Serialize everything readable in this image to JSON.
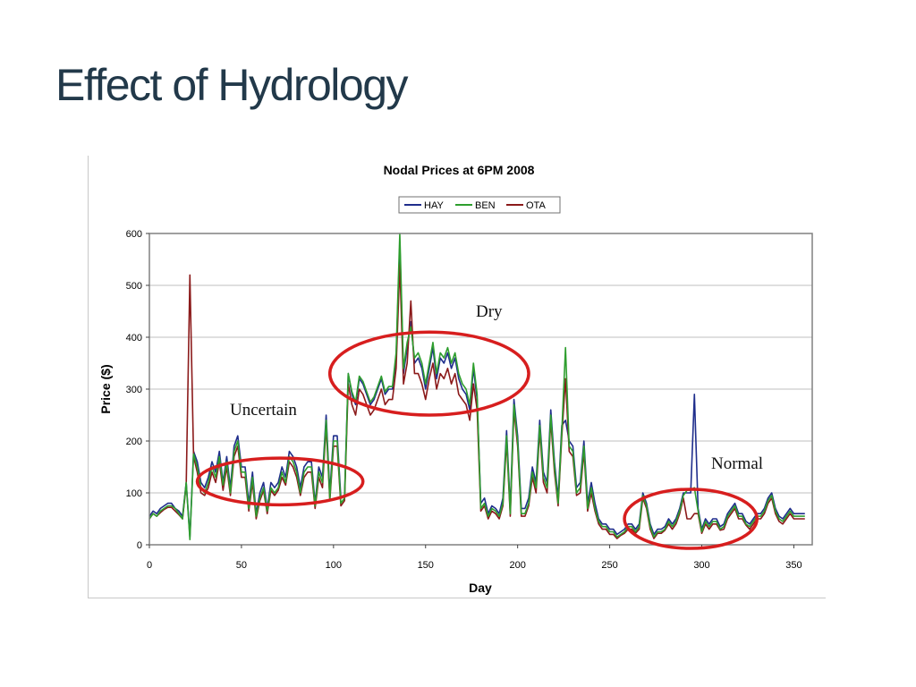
{
  "slide": {
    "title": "Effect of Hydrology"
  },
  "colors": {
    "title": "#22394a",
    "HAY": "#1f2e8c",
    "BEN": "#2e9e2e",
    "OTA": "#8b1a1a",
    "annotation": "#d71e1e",
    "grid": "#bfbfbf",
    "plot_border": "#808080"
  },
  "chart_data": {
    "type": "line",
    "title": "Nodal Prices at 6PM 2008",
    "xlabel": "Day",
    "ylabel": "Price ($)",
    "xlim": [
      0,
      360
    ],
    "ylim": [
      0,
      600
    ],
    "xticks": [
      0,
      50,
      100,
      150,
      200,
      250,
      300,
      350
    ],
    "yticks": [
      0,
      100,
      200,
      300,
      400,
      500,
      600
    ],
    "grid": "horizontal",
    "legend_position": "top-center",
    "x_step": 2,
    "series": [
      {
        "name": "HAY",
        "values": [
          55,
          65,
          60,
          70,
          75,
          80,
          80,
          70,
          65,
          55,
          120,
          15,
          180,
          160,
          120,
          110,
          130,
          160,
          140,
          180,
          120,
          170,
          110,
          190,
          210,
          150,
          150,
          80,
          140,
          60,
          100,
          120,
          70,
          120,
          110,
          120,
          150,
          130,
          180,
          170,
          150,
          110,
          150,
          160,
          160,
          80,
          150,
          130,
          250,
          100,
          210,
          210,
          90,
          95,
          330,
          290,
          270,
          320,
          310,
          290,
          270,
          280,
          300,
          320,
          290,
          300,
          300,
          360,
          580,
          330,
          380,
          430,
          350,
          360,
          340,
          300,
          340,
          380,
          320,
          360,
          350,
          370,
          340,
          360,
          320,
          300,
          290,
          260,
          340,
          280,
          80,
          90,
          60,
          75,
          70,
          60,
          90,
          220,
          70,
          280,
          210,
          70,
          70,
          90,
          150,
          120,
          240,
          140,
          120,
          260,
          160,
          90,
          230,
          240,
          200,
          190,
          110,
          120,
          200,
          80,
          120,
          80,
          50,
          40,
          40,
          30,
          30,
          20,
          25,
          30,
          40,
          40,
          30,
          40,
          100,
          80,
          40,
          20,
          30,
          30,
          35,
          50,
          40,
          50,
          70,
          100,
          100,
          100,
          290,
          70,
          30,
          50,
          40,
          50,
          50,
          35,
          40,
          60,
          70,
          80,
          60,
          60,
          45,
          40,
          50,
          60,
          60,
          70,
          90,
          100,
          70,
          55,
          50,
          60,
          70,
          60,
          60,
          60,
          60
        ],
        "note": "approximate reading of day-by-day values"
      },
      {
        "name": "BEN",
        "values": [
          50,
          60,
          55,
          65,
          70,
          75,
          75,
          70,
          60,
          50,
          120,
          10,
          175,
          150,
          110,
          100,
          120,
          150,
          130,
          170,
          115,
          160,
          100,
          180,
          200,
          140,
          140,
          70,
          130,
          55,
          90,
          110,
          65,
          110,
          100,
          110,
          140,
          120,
          170,
          160,
          140,
          100,
          140,
          150,
          150,
          75,
          140,
          120,
          240,
          90,
          200,
          200,
          80,
          90,
          330,
          295,
          275,
          325,
          315,
          295,
          275,
          285,
          305,
          325,
          295,
          305,
          305,
          370,
          600,
          340,
          390,
          420,
          360,
          370,
          350,
          310,
          350,
          390,
          330,
          370,
          360,
          380,
          350,
          370,
          330,
          310,
          300,
          270,
          350,
          290,
          70,
          80,
          55,
          70,
          65,
          55,
          80,
          210,
          60,
          270,
          200,
          60,
          60,
          80,
          140,
          110,
          230,
          130,
          110,
          250,
          150,
          80,
          220,
          380,
          190,
          180,
          100,
          110,
          190,
          70,
          110,
          70,
          45,
          35,
          35,
          25,
          25,
          15,
          20,
          25,
          35,
          35,
          25,
          35,
          95,
          75,
          35,
          15,
          25,
          25,
          30,
          45,
          35,
          45,
          65,
          95,
          105,
          105,
          110,
          65,
          25,
          45,
          35,
          45,
          45,
          30,
          35,
          55,
          65,
          75,
          55,
          55,
          40,
          35,
          45,
          55,
          55,
          65,
          85,
          95,
          65,
          50,
          45,
          55,
          65,
          55,
          55,
          55,
          55
        ]
      },
      {
        "name": "OTA",
        "values": [
          50,
          60,
          55,
          62,
          68,
          72,
          72,
          65,
          58,
          50,
          115,
          520,
          170,
          140,
          100,
          95,
          110,
          140,
          120,
          160,
          105,
          150,
          95,
          170,
          190,
          130,
          130,
          65,
          120,
          50,
          85,
          105,
          60,
          105,
          95,
          105,
          130,
          115,
          160,
          150,
          130,
          95,
          130,
          140,
          140,
          70,
          130,
          110,
          230,
          85,
          190,
          190,
          75,
          85,
          310,
          270,
          250,
          300,
          290,
          270,
          250,
          260,
          280,
          300,
          270,
          280,
          280,
          340,
          540,
          310,
          350,
          470,
          330,
          330,
          310,
          280,
          320,
          350,
          300,
          330,
          320,
          340,
          310,
          330,
          290,
          280,
          270,
          240,
          310,
          260,
          65,
          75,
          50,
          65,
          60,
          50,
          75,
          200,
          55,
          260,
          190,
          55,
          55,
          75,
          130,
          100,
          220,
          120,
          100,
          240,
          140,
          75,
          210,
          320,
          180,
          170,
          95,
          100,
          180,
          65,
          100,
          65,
          40,
          30,
          30,
          20,
          20,
          12,
          18,
          22,
          30,
          30,
          22,
          30,
          90,
          70,
          30,
          12,
          22,
          22,
          28,
          40,
          30,
          40,
          60,
          90,
          50,
          50,
          60,
          60,
          22,
          40,
          30,
          40,
          40,
          28,
          30,
          50,
          60,
          70,
          50,
          50,
          38,
          30,
          40,
          50,
          50,
          60,
          80,
          90,
          60,
          45,
          40,
          50,
          60,
          50,
          50,
          50,
          50
        ]
      }
    ],
    "annotations": [
      {
        "label": "Uncertain",
        "cx": 71,
        "cy": 122,
        "rx": 45,
        "ry": 45
      },
      {
        "label": "Dry",
        "cx": 152,
        "cy": 330,
        "rx": 54,
        "ry": 80
      },
      {
        "label": "Normal",
        "cx": 294,
        "cy": 50,
        "rx": 36,
        "ry": 57
      }
    ]
  }
}
